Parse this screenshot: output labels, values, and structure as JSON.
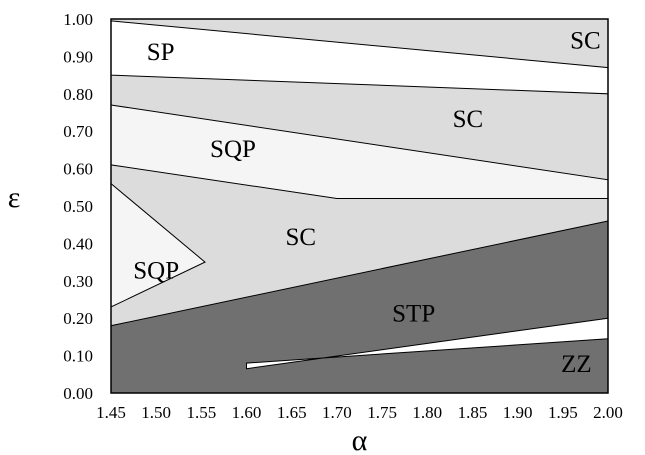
{
  "chart_data": {
    "type": "area",
    "title": "",
    "xlabel": "α",
    "ylabel": "ε",
    "xlim": [
      1.45,
      2.0
    ],
    "ylim": [
      0.0,
      1.0
    ],
    "x_ticks": [
      "1.45",
      "1.50",
      "1.55",
      "1.60",
      "1.65",
      "1.70",
      "1.75",
      "1.80",
      "1.85",
      "1.90",
      "1.95",
      "2.00"
    ],
    "y_ticks": [
      "0.00",
      "0.10",
      "0.20",
      "0.30",
      "0.40",
      "0.50",
      "0.60",
      "0.70",
      "0.80",
      "0.90",
      "1.00"
    ],
    "grid": false,
    "colors": {
      "SC": "#dcdcdc",
      "SP": "#ffffff",
      "SQP": "#f5f5f5",
      "STP": "#707070",
      "ZZ": "#ffffff"
    },
    "regions": [
      {
        "name": "SC",
        "color": "#dcdcdc",
        "points": [
          [
            1.45,
            0.0
          ],
          [
            2.0,
            0.0
          ],
          [
            2.0,
            1.0
          ],
          [
            1.45,
            1.0
          ]
        ]
      },
      {
        "name": "SP",
        "color": "#ffffff",
        "points": [
          [
            1.45,
            0.995
          ],
          [
            2.0,
            0.87
          ],
          [
            2.0,
            0.8
          ],
          [
            1.45,
            0.85
          ]
        ]
      },
      {
        "name": "SQP",
        "color": "#f5f5f5",
        "points": [
          [
            1.45,
            0.77
          ],
          [
            2.0,
            0.57
          ],
          [
            2.0,
            0.52
          ],
          [
            1.7,
            0.52
          ],
          [
            1.45,
            0.61
          ]
        ]
      },
      {
        "name": "SQP",
        "color": "#f5f5f5",
        "points": [
          [
            1.45,
            0.56
          ],
          [
            1.554,
            0.35
          ],
          [
            1.45,
            0.23
          ]
        ]
      },
      {
        "name": "STP",
        "color": "#707070",
        "points": [
          [
            1.45,
            0.0
          ],
          [
            2.0,
            0.0
          ],
          [
            2.0,
            0.46
          ],
          [
            1.45,
            0.18
          ]
        ]
      },
      {
        "name": "ZZ",
        "color": "#ffffff",
        "points": [
          [
            1.6,
            0.065
          ],
          [
            2.0,
            0.2
          ],
          [
            2.0,
            0.145
          ],
          [
            1.6,
            0.08
          ]
        ]
      }
    ],
    "labels": [
      {
        "text": "SP",
        "x": 1.505,
        "y": 0.915
      },
      {
        "text": "SC",
        "x": 1.975,
        "y": 0.945
      },
      {
        "text": "SC",
        "x": 1.845,
        "y": 0.735
      },
      {
        "text": "SQP",
        "x": 1.585,
        "y": 0.655
      },
      {
        "text": "SC",
        "x": 1.66,
        "y": 0.42
      },
      {
        "text": "SQP",
        "x": 1.5,
        "y": 0.33
      },
      {
        "text": "STP",
        "x": 1.785,
        "y": 0.215
      },
      {
        "text": "ZZ",
        "x": 1.965,
        "y": 0.08
      }
    ]
  }
}
